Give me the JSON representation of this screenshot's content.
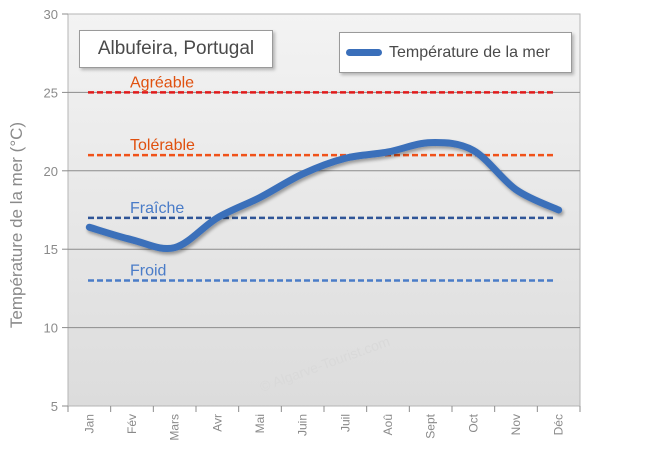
{
  "chart_data": {
    "type": "line",
    "title": "Albufeira, Portugal",
    "ylabel": "Température de la mer (°C)",
    "xlabel": "",
    "ylim": [
      5,
      30
    ],
    "yticks": [
      5,
      10,
      15,
      20,
      25,
      30
    ],
    "categories": [
      "Jan",
      "Fév",
      "Mars",
      "Avr",
      "Mai",
      "Juin",
      "Juil",
      "Aoû",
      "Sept",
      "Oct",
      "Nov",
      "Déc"
    ],
    "series": [
      {
        "name": "Température de la mer",
        "color": "#3a6fba",
        "values": [
          16.4,
          15.6,
          15.1,
          17.0,
          18.3,
          19.8,
          20.8,
          21.2,
          21.8,
          21.3,
          18.8,
          17.5
        ]
      }
    ],
    "thresholds": [
      {
        "label": "Agréable",
        "value": 25,
        "line_color": "#e01b1b",
        "label_color": "#e0500e"
      },
      {
        "label": "Tolérable",
        "value": 21,
        "line_color": "#f0521a",
        "label_color": "#e0500e"
      },
      {
        "label": "Fraîche",
        "value": 17,
        "line_color": "#2f5597",
        "label_color": "#4a7cc8"
      },
      {
        "label": "Froid",
        "value": 13,
        "line_color": "#4a7cc8",
        "label_color": "#4a7cc8"
      }
    ],
    "grid": true,
    "legend": "top-right",
    "watermark": "© Algarve-Tourist.com",
    "background": "#ffffff"
  }
}
